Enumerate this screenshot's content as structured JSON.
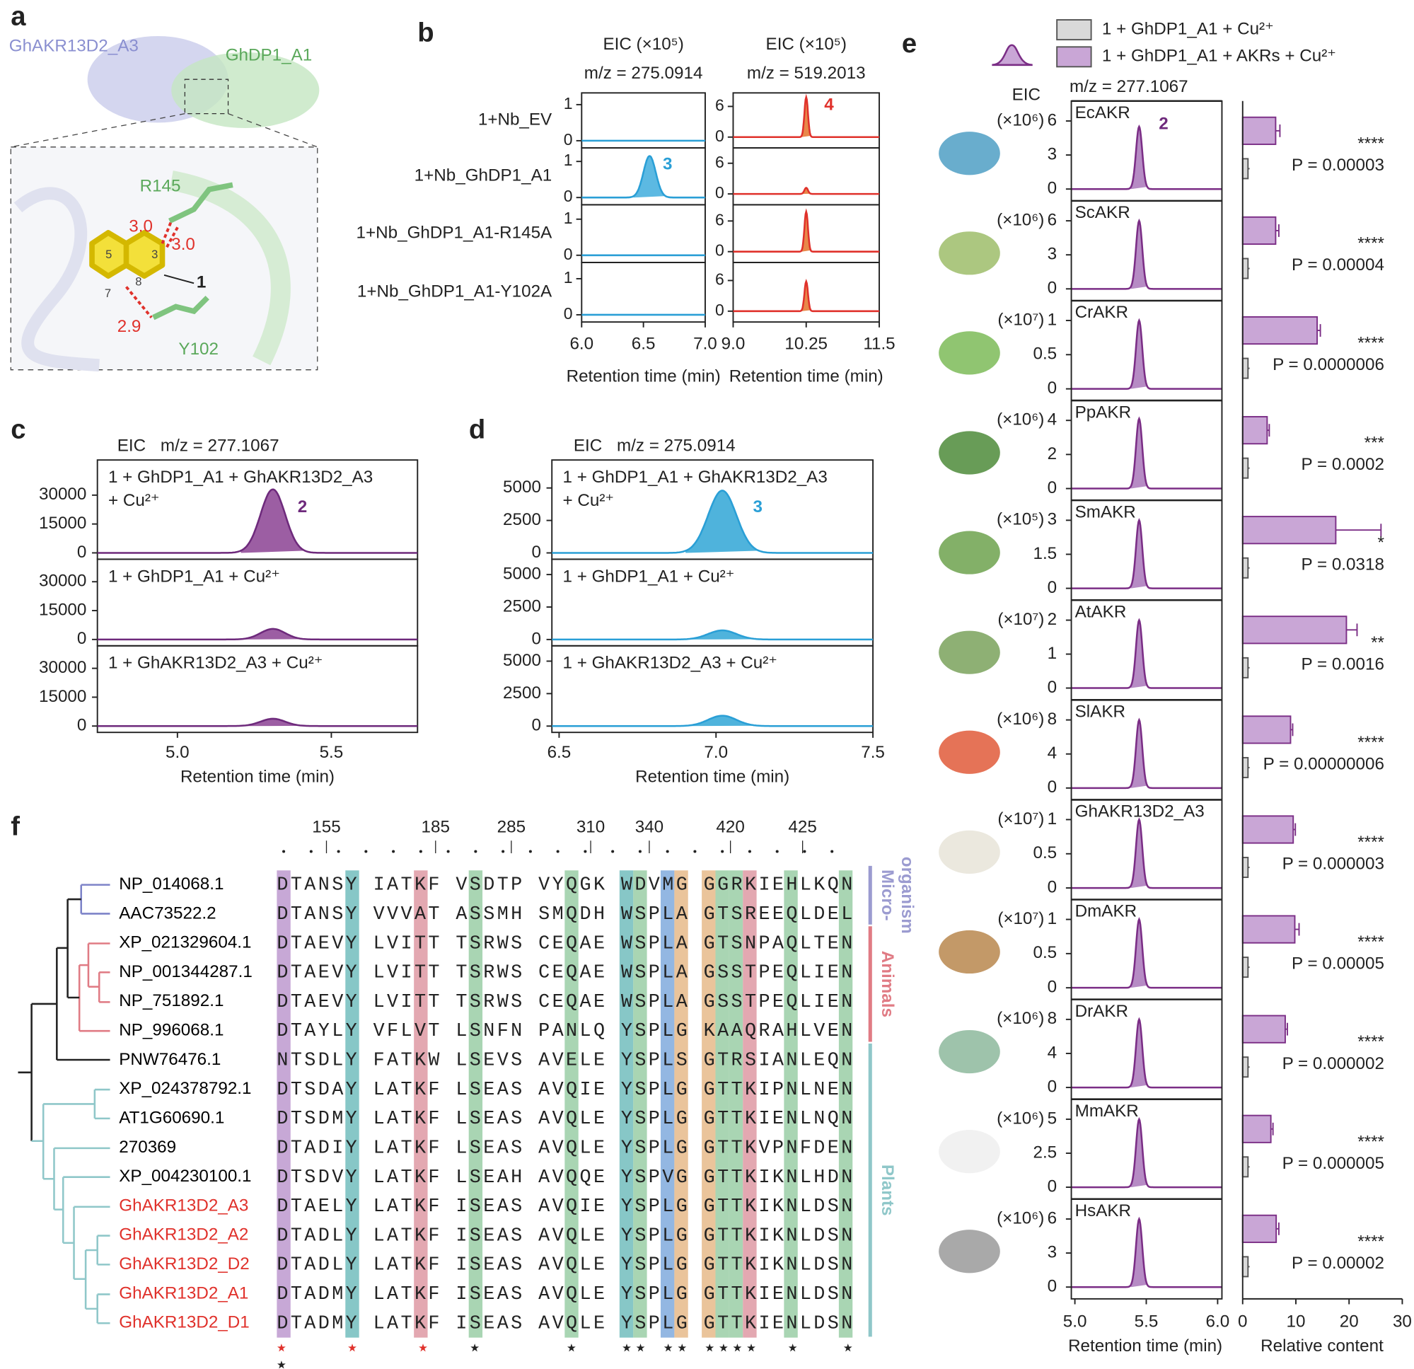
{
  "panel_labels": [
    "a",
    "b",
    "c",
    "d",
    "e",
    "f"
  ],
  "panel_a": {
    "protein_left": "GhAKR13D2_A3",
    "protein_right": "GhDP1_A1",
    "residue_top": "R145",
    "residue_bottom": "Y102",
    "distances": [
      "3.0",
      "3.0",
      "2.9"
    ],
    "compound": "1",
    "atom_numbers": [
      "5",
      "3",
      "7",
      "8"
    ]
  },
  "panel_b": {
    "eic_label": "EIC (×10⁵)",
    "x_label": "Retention time (min)",
    "samples": [
      "1+Nb_EV",
      "1+Nb_GhDP1_A1",
      "1+Nb_GhDP1_A1-R145A",
      "1+Nb_GhDP1_A1-Y102A"
    ],
    "plots": [
      {
        "type": "line",
        "mz_label": "m/z = 275.0914",
        "color": "#2a9fd6",
        "fill": "#5cb9e2",
        "peak_label": "3",
        "xlim": [
          6,
          7
        ],
        "xticks": [
          {
            "value": 6,
            "label": "6.0"
          },
          {
            "value": 6.5,
            "label": "6.5"
          },
          {
            "value": 7,
            "label": "7.0"
          }
        ],
        "ylim": [
          -0.2,
          1.375
        ],
        "yticks": [
          0,
          1
        ],
        "peak_rt": 6.55,
        "peak_heights": [
          0,
          1.15,
          0,
          0
        ]
      },
      {
        "type": "line",
        "mz_label": "m/z = 519.2013",
        "color": "#e0312b",
        "fill": "#e8884a",
        "peak_label": "4",
        "xlim": [
          9,
          11.5
        ],
        "xticks": [
          {
            "value": 9,
            "label": "9.0"
          },
          10.25,
          {
            "value": 11.5,
            "label": "11.5"
          }
        ],
        "ylim": [
          -2.12,
          9
        ],
        "yticks": [
          0,
          6
        ],
        "peak_rt": 10.25,
        "peak_heights": [
          7.8,
          1.2,
          7.8,
          5.8
        ]
      }
    ]
  },
  "panel_c": {
    "type": "line",
    "eic": "EIC",
    "mz_label": "m/z = 277.1067",
    "x_label": "Retention time (min)",
    "samples": [
      [
        "1 + GhDP1_A1 + GhAKR13D2_A3",
        "+ Cu²⁺"
      ],
      [
        "1 + GhDP1_A1 + Cu²⁺"
      ],
      [
        "1 + GhAKR13D2_A3 + Cu²⁺"
      ]
    ],
    "color": "#6e2a7c",
    "fill": "#9c5ea3",
    "peak_label": "2",
    "xlim": [
      4.74,
      5.78
    ],
    "xticks": [
      {
        "value": 5,
        "label": "5.0"
      },
      5.5
    ],
    "ylim": [
      -3300,
      41700
    ],
    "yticks": [
      0,
      15000,
      30000
    ],
    "peak_rt": 5.31,
    "peak_heights": [
      33000,
      5500,
      3800
    ]
  },
  "panel_d": {
    "type": "line",
    "eic": "EIC",
    "mz_label": "m/z = 275.0914",
    "x_label": "Retention time (min)",
    "samples": [
      [
        "1 + GhDP1_A1 + GhAKR13D2_A3",
        "+ Cu²⁺"
      ],
      [
        "1 + GhDP1_A1 + Cu²⁺"
      ],
      [
        "1 + GhAKR13D2_A3 + Cu²⁺"
      ]
    ],
    "color": "#2a9fd6",
    "fill": "#4fb3dc",
    "peak_label": "3",
    "xlim": [
      6.477,
      7.5
    ],
    "xticks": [
      6.5,
      {
        "value": 7,
        "label": "7.0"
      },
      7.5
    ],
    "ylim": [
      -486,
      6181
    ],
    "yticks": [
      0,
      2500,
      5000
    ],
    "peak_rt": 7.02,
    "peak_heights": [
      4800,
      700,
      800
    ]
  },
  "panel_e": {
    "type": "line",
    "eic": "EIC",
    "mz_label": "m/z = 277.1067",
    "peak_label": "2",
    "legend": [
      {
        "name": "1 + GhDP1_A1 + Cu²⁺",
        "color": "#d9d9d9"
      },
      {
        "name": "1 + GhDP1_A1 + AKRs + Cu²⁺",
        "color": "#c9a6d6"
      }
    ],
    "color": "#7b2e86",
    "fill": "#b68bc4",
    "chrom_xlim": [
      4.975,
      6.03
    ],
    "chrom_xticks": [
      {
        "value": 5,
        "label": "5.0"
      },
      5.5,
      {
        "value": 6,
        "label": "6.0"
      }
    ],
    "bar_xlim": [
      0,
      30
    ],
    "bar_xticks": [
      0,
      10,
      20,
      30
    ],
    "peak_rt": 5.45,
    "x_label_chrom": "Retention time (min)",
    "x_label_bar": "Relative content",
    "rows": [
      {
        "name": "EcAKR",
        "scale": "(×10⁶)",
        "ylim": [
          -1.04,
          7.76
        ],
        "yticks": [
          0,
          3,
          6
        ],
        "peak_height": 5.5,
        "value": 6.2,
        "error": 0.8,
        "control_value": 1,
        "control_error": 0.3,
        "significance": "****",
        "p_label": "P = 0.00003"
      },
      {
        "name": "ScAKR",
        "scale": "(×10⁶)",
        "ylim": [
          -1.04,
          7.76
        ],
        "yticks": [
          0,
          3,
          6
        ],
        "peak_height": 6,
        "value": 6.2,
        "error": 0.6,
        "control_value": 1,
        "control_error": 0.3,
        "significance": "****",
        "p_label": "P = 0.00004"
      },
      {
        "name": "CrAKR",
        "scale": "(×10⁷)",
        "ylim": [
          -0.17,
          1.29
        ],
        "yticks": [
          0,
          0.5,
          1
        ],
        "peak_height": 1,
        "value": 14,
        "error": 0.6,
        "control_value": 1,
        "control_error": 0.3,
        "significance": "****",
        "p_label": "P = 0.0000006"
      },
      {
        "name": "PpAKR",
        "scale": "(×10⁶)",
        "ylim": [
          -0.69,
          5.17
        ],
        "yticks": [
          0,
          2,
          4
        ],
        "peak_height": 4.1,
        "value": 4.6,
        "error": 0.4,
        "control_value": 1,
        "control_error": 0.3,
        "significance": "***",
        "p_label": "P = 0.0002"
      },
      {
        "name": "SmAKR",
        "scale": "(×10⁵)",
        "ylim": [
          -0.52,
          3.88
        ],
        "yticks": [
          0,
          1.5,
          3
        ],
        "peak_height": 3,
        "value": 17.5,
        "error": 8.5,
        "control_value": 1,
        "control_error": 0.3,
        "significance": "*",
        "p_label": "P = 0.0318"
      },
      {
        "name": "AtAKR",
        "scale": "(×10⁷)",
        "ylim": [
          -0.35,
          2.59
        ],
        "yticks": [
          0,
          1,
          2
        ],
        "peak_height": 2,
        "value": 19.5,
        "error": 2,
        "control_value": 1,
        "control_error": 0.3,
        "significance": "**",
        "p_label": "P = 0.0016"
      },
      {
        "name": "SlAKR",
        "scale": "(×10⁶)",
        "ylim": [
          -1.38,
          10.35
        ],
        "yticks": [
          0,
          4,
          8
        ],
        "peak_height": 8,
        "value": 9,
        "error": 0.4,
        "control_value": 1,
        "control_error": 0.3,
        "significance": "****",
        "p_label": "P = 0.00000006"
      },
      {
        "name": "GhAKR13D2_A3",
        "scale": "(×10⁷)",
        "ylim": [
          -0.17,
          1.29
        ],
        "yticks": [
          0,
          0.5,
          1
        ],
        "peak_height": 1,
        "value": 9.5,
        "error": 0.4,
        "control_value": 1,
        "control_error": 0.3,
        "significance": "****",
        "p_label": "P = 0.000003"
      },
      {
        "name": "DmAKR",
        "scale": "(×10⁷)",
        "ylim": [
          -0.17,
          1.29
        ],
        "yticks": [
          0,
          0.5,
          1
        ],
        "peak_height": 1,
        "value": 9.8,
        "error": 0.8,
        "control_value": 1,
        "control_error": 0.3,
        "significance": "****",
        "p_label": "P = 0.00005"
      },
      {
        "name": "DrAKR",
        "scale": "(×10⁶)",
        "ylim": [
          -1.38,
          10.35
        ],
        "yticks": [
          0,
          4,
          8
        ],
        "peak_height": 8,
        "value": 8,
        "error": 0.4,
        "control_value": 1,
        "control_error": 0.3,
        "significance": "****",
        "p_label": "P = 0.000002"
      },
      {
        "name": "MmAKR",
        "scale": "(×10⁶)",
        "ylim": [
          -0.87,
          6.47
        ],
        "yticks": [
          0,
          2.5,
          5
        ],
        "peak_height": 5,
        "value": 5.3,
        "error": 0.4,
        "control_value": 1,
        "control_error": 0.3,
        "significance": "****",
        "p_label": "P = 0.000005"
      },
      {
        "name": "HsAKR",
        "scale": "(×10⁶)",
        "ylim": [
          -1.04,
          7.76
        ],
        "yticks": [
          0,
          3,
          6
        ],
        "peak_height": 6,
        "value": 6.3,
        "error": 0.5,
        "control_value": 1,
        "control_error": 0.3,
        "significance": "****",
        "p_label": "P = 0.00002"
      }
    ]
  },
  "panel_f": {
    "positions": [
      155,
      185,
      285,
      310,
      340,
      420,
      425
    ],
    "groups": [
      {
        "label": [
          "Micro-",
          "organism"
        ],
        "color": "#9b9bd0"
      },
      {
        "label": [
          "Animals"
        ],
        "color": "#e07b84"
      },
      {
        "label": [
          "Plants"
        ],
        "color": "#8fc7c9"
      }
    ],
    "sequences": [
      {
        "name": "NP_014068.1",
        "color": "#000000",
        "sequence": "DTANSY IATKF VSDTP VYQGK WDVMG GGRKIEHLKQN"
      },
      {
        "name": "AAC73522.2",
        "color": "#000000",
        "sequence": "DTANSY VVVAT ASSMH SMQDH WSPLA GTSREEQLDEL"
      },
      {
        "name": "XP_021329604.1",
        "color": "#000000",
        "sequence": "DTAEVY LVITT TSRWS CEQAE WSPLA GTSNPAQLTEN"
      },
      {
        "name": "NP_001344287.1",
        "color": "#000000",
        "sequence": "DTAEVY LVITT TSRWS CEQAE WSPLA GSSTPEQLIEN"
      },
      {
        "name": "NP_751892.1",
        "color": "#000000",
        "sequence": "DTAEVY LVITT TSRWS CEQAE WSPLA GSSTPEQLIEN"
      },
      {
        "name": "NP_996068.1",
        "color": "#000000",
        "sequence": "DTAYLY VFLVT LSNFN PANLQ YSPLG KAAQRAHLVEN"
      },
      {
        "name": "PNW76476.1",
        "color": "#000000",
        "sequence": "NTSDLY FATKW LSEVS AVELE YSPLS GTRSIANLEQN"
      },
      {
        "name": "XP_024378792.1",
        "color": "#000000",
        "sequence": "DTSDAY LATKF LSEAS AVQIE YSPLG GTTKIPNLNEN"
      },
      {
        "name": "AT1G60690.1",
        "color": "#000000",
        "sequence": "DTSDMY LATKF LSEAS AVQLE YSPLG GTTKIENLNQN"
      },
      {
        "name": "270369",
        "color": "#000000",
        "sequence": "DTADIY LATKF LSEAS AVQLE YSPLG GTTKVPNFDEN"
      },
      {
        "name": "XP_004230100.1",
        "color": "#000000",
        "sequence": "DTSDVY LATKF LSEAH AVQQE YSPVG GTTKIKNLHDN"
      },
      {
        "name": "GhAKR13D2_A3",
        "color": "#e0312b",
        "sequence": "DTAELY LATKF ISEAS AVQIE YSPLG GTTKIKNLDSN"
      },
      {
        "name": "GhAKR13D2_A2",
        "color": "#e0312b",
        "sequence": "DTADLY LATKF ISEAS AVQLE YSPLG GTTKIKNLDSN"
      },
      {
        "name": "GhAKR13D2_D2",
        "color": "#e0312b",
        "sequence": "DTADLY LATKF ISEAS AVQLE YSPLG GTTKIKNLDSN"
      },
      {
        "name": "GhAKR13D2_A1",
        "color": "#e0312b",
        "sequence": "DTADMY LATKF ISEAS AVQLE YSPLG GTTKIENLDSN"
      },
      {
        "name": "GhAKR13D2_D1",
        "color": "#e0312b",
        "sequence": "DTADMY LATKF ISEAS AVQLE YSPLG GTTKIENLDSN"
      }
    ],
    "key_marks": "★    ★    ★",
    "conserved_marks": "              ★      ★   ★★ ★★ ★★★★  ★   ★",
    "conserved_marks_2": "★"
  }
}
